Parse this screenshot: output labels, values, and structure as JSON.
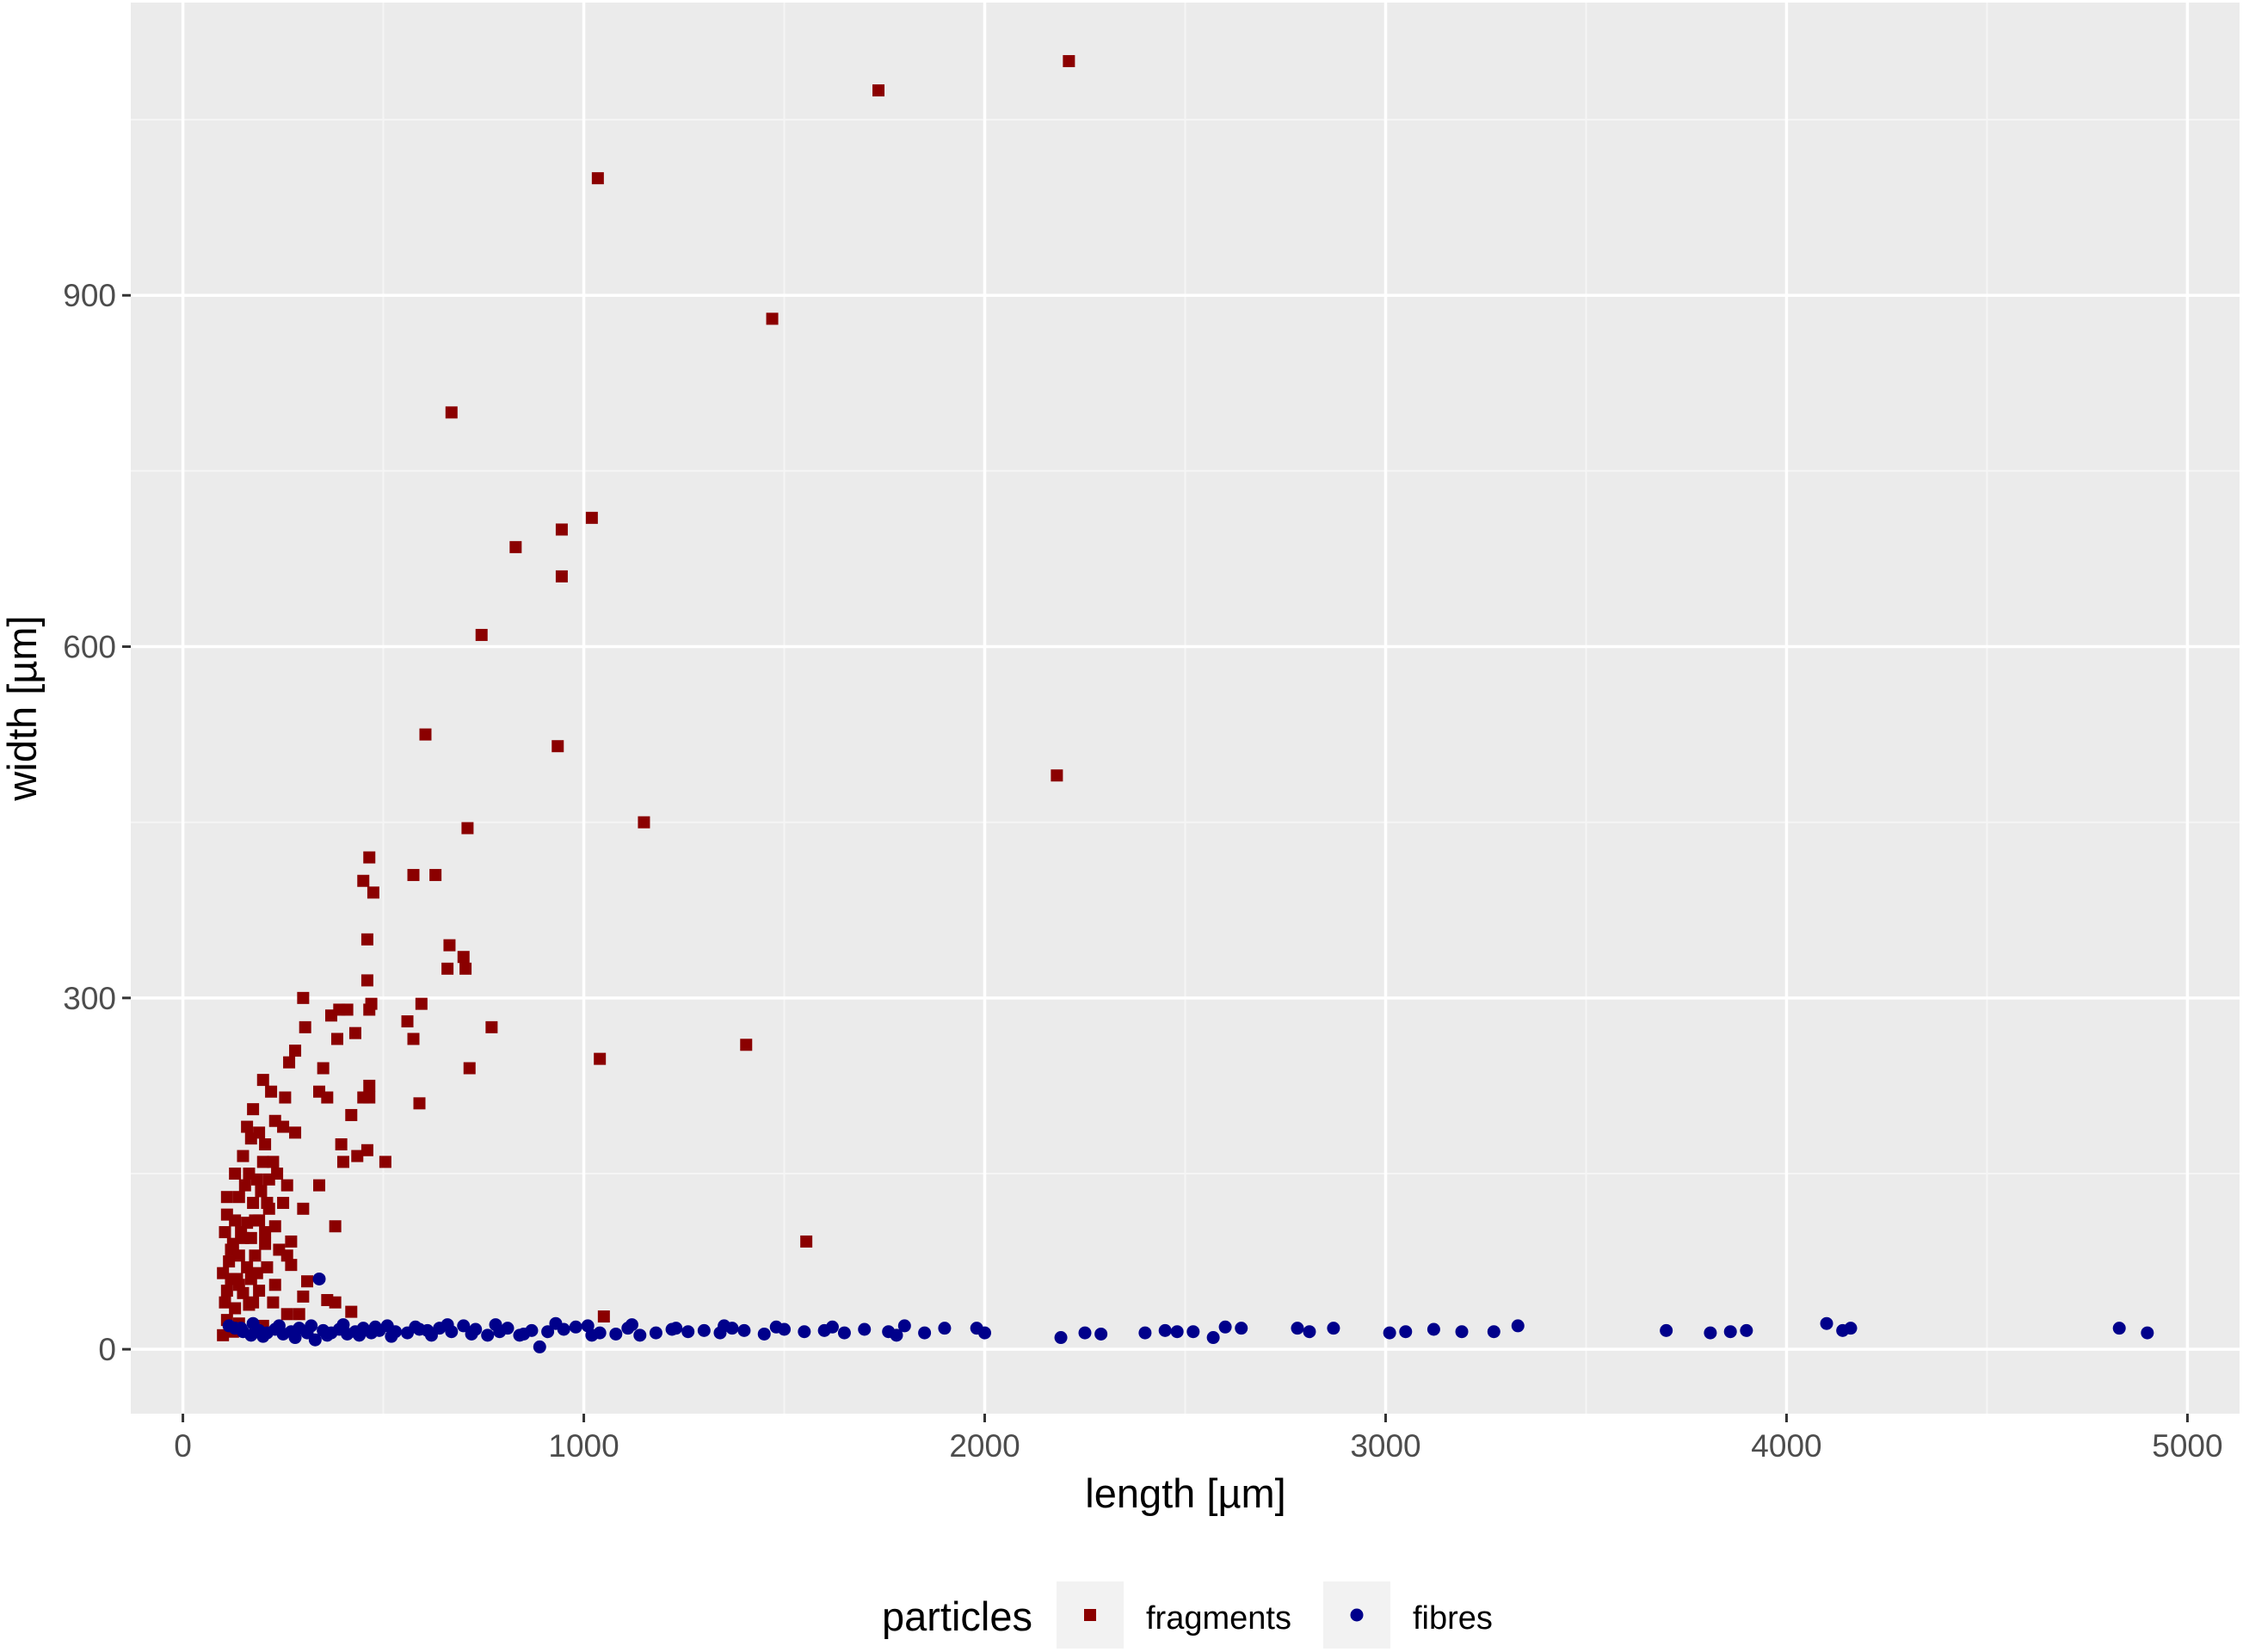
{
  "chart_data": {
    "type": "scatter",
    "title": "",
    "xlabel": "length [µm]",
    "ylabel": "width [µm]",
    "xlim": [
      -130,
      5130
    ],
    "ylim": [
      -55,
      1150
    ],
    "x_ticks": [
      0,
      1000,
      2000,
      3000,
      4000,
      5000
    ],
    "x_tick_labels": [
      "0",
      "1000",
      "2000",
      "3000",
      "4000",
      "5000"
    ],
    "y_ticks": [
      0,
      300,
      600,
      900
    ],
    "y_tick_labels": [
      "0",
      "300",
      "600",
      "900"
    ],
    "grid": true,
    "legend": {
      "title": "particles",
      "position": "bottom",
      "entries": [
        "fragments",
        "fibres"
      ]
    },
    "colors": {
      "panel": "#ebebeb",
      "grid_major": "#ffffff",
      "grid_minor": "#f5f5f5",
      "legend_key_bg": "#f2f2f2",
      "fragments": "#8b0000",
      "fibres": "#00008b"
    },
    "series": [
      {
        "name": "fragments",
        "marker": "square",
        "color": "#8b0000",
        "points": [
          [
            2210,
            1100
          ],
          [
            1735,
            1075
          ],
          [
            1035,
            1000
          ],
          [
            1470,
            880
          ],
          [
            670,
            800
          ],
          [
            1020,
            710
          ],
          [
            830,
            685
          ],
          [
            945,
            700
          ],
          [
            945,
            660
          ],
          [
            745,
            610
          ],
          [
            935,
            515
          ],
          [
            2180,
            490
          ],
          [
            605,
            525
          ],
          [
            1150,
            450
          ],
          [
            710,
            445
          ],
          [
            575,
            405
          ],
          [
            630,
            405
          ],
          [
            465,
            420
          ],
          [
            450,
            400
          ],
          [
            475,
            390
          ],
          [
            460,
            350
          ],
          [
            665,
            345
          ],
          [
            700,
            335
          ],
          [
            660,
            325
          ],
          [
            705,
            325
          ],
          [
            460,
            315
          ],
          [
            300,
            300
          ],
          [
            470,
            295
          ],
          [
            465,
            290
          ],
          [
            595,
            295
          ],
          [
            390,
            290
          ],
          [
            410,
            290
          ],
          [
            370,
            285
          ],
          [
            305,
            275
          ],
          [
            560,
            280
          ],
          [
            770,
            275
          ],
          [
            430,
            270
          ],
          [
            575,
            265
          ],
          [
            385,
            265
          ],
          [
            280,
            255
          ],
          [
            1405,
            260
          ],
          [
            265,
            245
          ],
          [
            350,
            240
          ],
          [
            715,
            240
          ],
          [
            1040,
            248
          ],
          [
            340,
            220
          ],
          [
            465,
            225
          ],
          [
            200,
            230
          ],
          [
            220,
            220
          ],
          [
            255,
            215
          ],
          [
            450,
            215
          ],
          [
            465,
            215
          ],
          [
            360,
            215
          ],
          [
            175,
            205
          ],
          [
            590,
            210
          ],
          [
            420,
            200
          ],
          [
            230,
            195
          ],
          [
            160,
            190
          ],
          [
            190,
            185
          ],
          [
            250,
            190
          ],
          [
            280,
            185
          ],
          [
            170,
            180
          ],
          [
            395,
            175
          ],
          [
            205,
            175
          ],
          [
            460,
            170
          ],
          [
            150,
            165
          ],
          [
            200,
            160
          ],
          [
            225,
            160
          ],
          [
            435,
            165
          ],
          [
            400,
            160
          ],
          [
            505,
            160
          ],
          [
            130,
            150
          ],
          [
            165,
            150
          ],
          [
            185,
            145
          ],
          [
            215,
            145
          ],
          [
            260,
            140
          ],
          [
            340,
            140
          ],
          [
            110,
            130
          ],
          [
            140,
            130
          ],
          [
            175,
            125
          ],
          [
            210,
            125
          ],
          [
            250,
            125
          ],
          [
            300,
            120
          ],
          [
            130,
            110
          ],
          [
            160,
            108
          ],
          [
            190,
            110
          ],
          [
            230,
            105
          ],
          [
            380,
            105
          ],
          [
            105,
            100
          ],
          [
            150,
            95
          ],
          [
            205,
            90
          ],
          [
            270,
            92
          ],
          [
            1555,
            92
          ],
          [
            120,
            85
          ],
          [
            140,
            80
          ],
          [
            180,
            80
          ],
          [
            240,
            85
          ],
          [
            115,
            75
          ],
          [
            160,
            70
          ],
          [
            210,
            70
          ],
          [
            270,
            72
          ],
          [
            100,
            65
          ],
          [
            135,
            60
          ],
          [
            170,
            60
          ],
          [
            230,
            55
          ],
          [
            310,
            58
          ],
          [
            110,
            50
          ],
          [
            150,
            48
          ],
          [
            190,
            50
          ],
          [
            360,
            42
          ],
          [
            380,
            40
          ],
          [
            105,
            40
          ],
          [
            130,
            35
          ],
          [
            165,
            38
          ],
          [
            260,
            30
          ],
          [
            420,
            32
          ],
          [
            290,
            30
          ],
          [
            300,
            45
          ],
          [
            110,
            25
          ],
          [
            140,
            22
          ],
          [
            200,
            20
          ],
          [
            1050,
            28
          ],
          [
            125,
            15
          ],
          [
            100,
            12
          ],
          [
            180,
            110
          ],
          [
            195,
            135
          ],
          [
            145,
            100
          ],
          [
            125,
            90
          ],
          [
            170,
            95
          ],
          [
            215,
            120
          ],
          [
            155,
            140
          ],
          [
            235,
            150
          ],
          [
            120,
            60
          ],
          [
            185,
            65
          ],
          [
            140,
            55
          ],
          [
            260,
            80
          ],
          [
            205,
            100
          ],
          [
            110,
            115
          ],
          [
            175,
            40
          ],
          [
            225,
            40
          ]
        ]
      },
      {
        "name": "fibres",
        "marker": "circle",
        "color": "#00008b",
        "points": [
          [
            340,
            60
          ],
          [
            130,
            18
          ],
          [
            150,
            15
          ],
          [
            170,
            12
          ],
          [
            190,
            16
          ],
          [
            210,
            14
          ],
          [
            230,
            17
          ],
          [
            250,
            13
          ],
          [
            270,
            15
          ],
          [
            290,
            18
          ],
          [
            310,
            14
          ],
          [
            330,
            8
          ],
          [
            350,
            16
          ],
          [
            370,
            14
          ],
          [
            390,
            17
          ],
          [
            410,
            13
          ],
          [
            430,
            15
          ],
          [
            450,
            18
          ],
          [
            470,
            14
          ],
          [
            490,
            16
          ],
          [
            510,
            20
          ],
          [
            530,
            15
          ],
          [
            560,
            14
          ],
          [
            590,
            17
          ],
          [
            610,
            16
          ],
          [
            640,
            18
          ],
          [
            670,
            15
          ],
          [
            700,
            20
          ],
          [
            730,
            17
          ],
          [
            760,
            12
          ],
          [
            790,
            15
          ],
          [
            810,
            18
          ],
          [
            840,
            12
          ],
          [
            870,
            16
          ],
          [
            890,
            2
          ],
          [
            910,
            15
          ],
          [
            950,
            17
          ],
          [
            980,
            19
          ],
          [
            1010,
            20
          ],
          [
            1040,
            14
          ],
          [
            1080,
            13
          ],
          [
            1110,
            18
          ],
          [
            1140,
            12
          ],
          [
            1180,
            14
          ],
          [
            1220,
            17
          ],
          [
            1260,
            15
          ],
          [
            1300,
            16
          ],
          [
            1340,
            14
          ],
          [
            1370,
            18
          ],
          [
            1400,
            16
          ],
          [
            1450,
            13
          ],
          [
            1500,
            17
          ],
          [
            1550,
            15
          ],
          [
            1600,
            16
          ],
          [
            1650,
            14
          ],
          [
            1700,
            17
          ],
          [
            1760,
            15
          ],
          [
            1800,
            20
          ],
          [
            1850,
            14
          ],
          [
            1900,
            18
          ],
          [
            1980,
            18
          ],
          [
            2000,
            14
          ],
          [
            2190,
            10
          ],
          [
            2250,
            14
          ],
          [
            2290,
            13
          ],
          [
            2400,
            14
          ],
          [
            2450,
            16
          ],
          [
            2480,
            15
          ],
          [
            2520,
            15
          ],
          [
            2570,
            10
          ],
          [
            2600,
            19
          ],
          [
            2640,
            18
          ],
          [
            2780,
            18
          ],
          [
            2810,
            15
          ],
          [
            2870,
            18
          ],
          [
            3010,
            14
          ],
          [
            3050,
            15
          ],
          [
            3120,
            17
          ],
          [
            3190,
            15
          ],
          [
            3270,
            15
          ],
          [
            3330,
            20
          ],
          [
            3700,
            16
          ],
          [
            3810,
            14
          ],
          [
            3860,
            15
          ],
          [
            3900,
            16
          ],
          [
            4100,
            22
          ],
          [
            4140,
            16
          ],
          [
            4160,
            18
          ],
          [
            4830,
            18
          ],
          [
            4900,
            14
          ],
          [
            115,
            20
          ],
          [
            145,
            18
          ],
          [
            175,
            22
          ],
          [
            200,
            11
          ],
          [
            240,
            20
          ],
          [
            280,
            10
          ],
          [
            320,
            20
          ],
          [
            360,
            12
          ],
          [
            400,
            21
          ],
          [
            440,
            12
          ],
          [
            480,
            19
          ],
          [
            520,
            11
          ],
          [
            580,
            19
          ],
          [
            620,
            12
          ],
          [
            660,
            21
          ],
          [
            720,
            13
          ],
          [
            780,
            21
          ],
          [
            850,
            13
          ],
          [
            930,
            22
          ],
          [
            1020,
            12
          ],
          [
            1120,
            21
          ],
          [
            1230,
            18
          ],
          [
            1350,
            20
          ],
          [
            1480,
            19
          ],
          [
            1620,
            19
          ],
          [
            1780,
            12
          ]
        ]
      }
    ]
  }
}
